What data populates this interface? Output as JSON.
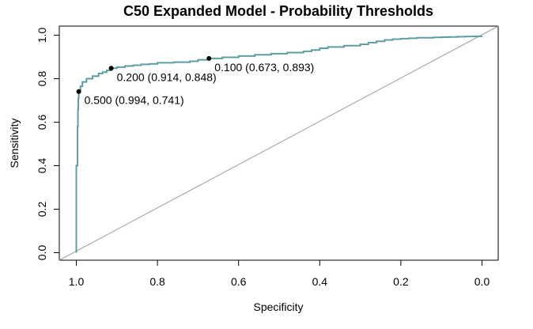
{
  "chart_data": {
    "type": "line",
    "title": "C50 Expanded Model - Probability Thresholds",
    "xlabel": "Specificity",
    "ylabel": "Sensitivity",
    "xlim": [
      1.0,
      0.0
    ],
    "ylim": [
      0.0,
      1.0
    ],
    "x_ticks": [
      1.0,
      0.8,
      0.6,
      0.4,
      0.2,
      0.0
    ],
    "x_tick_labels": [
      "1.0",
      "0.8",
      "0.6",
      "0.4",
      "0.2",
      "0.0"
    ],
    "y_ticks": [
      0.0,
      0.2,
      0.4,
      0.6,
      0.8,
      1.0
    ],
    "y_tick_labels": [
      "0.0",
      "0.2",
      "0.4",
      "0.6",
      "0.8",
      "1.0"
    ],
    "grid": false,
    "colors": {
      "roc_curve": "#5f9ea0",
      "diagonal": "#9e9e9e",
      "points": "#000000",
      "frame": "#000000"
    },
    "series": [
      {
        "x": [
          1.0,
          1.0,
          0.997,
          0.996,
          0.995,
          0.994,
          0.99,
          0.985,
          0.975,
          0.96,
          0.945,
          0.935,
          0.925,
          0.914,
          0.9,
          0.88,
          0.86,
          0.84,
          0.82,
          0.8,
          0.76,
          0.72,
          0.7,
          0.673,
          0.64,
          0.6,
          0.56,
          0.52,
          0.48,
          0.44,
          0.42,
          0.4,
          0.38,
          0.34,
          0.3,
          0.28,
          0.26,
          0.24,
          0.22,
          0.2,
          0.18,
          0.16,
          0.14,
          0.12,
          0.1,
          0.08,
          0.06,
          0.04,
          0.02,
          0.0
        ],
        "y": [
          0.0,
          0.4,
          0.58,
          0.66,
          0.71,
          0.741,
          0.765,
          0.785,
          0.8,
          0.812,
          0.824,
          0.83,
          0.838,
          0.848,
          0.853,
          0.858,
          0.862,
          0.866,
          0.868,
          0.873,
          0.876,
          0.88,
          0.887,
          0.893,
          0.898,
          0.904,
          0.91,
          0.915,
          0.92,
          0.926,
          0.932,
          0.94,
          0.946,
          0.952,
          0.958,
          0.966,
          0.972,
          0.978,
          0.982,
          0.984,
          0.986,
          0.988,
          0.988,
          0.99,
          0.991,
          0.992,
          0.993,
          0.994,
          0.995,
          0.996
        ]
      }
    ],
    "annotations": [
      {
        "threshold": 0.5,
        "specificity": 0.994,
        "sensitivity": 0.741,
        "label": "0.500 (0.994, 0.741)"
      },
      {
        "threshold": 0.2,
        "specificity": 0.914,
        "sensitivity": 0.848,
        "label": "0.200 (0.914, 0.848)"
      },
      {
        "threshold": 0.1,
        "specificity": 0.673,
        "sensitivity": 0.893,
        "label": "0.100 (0.673, 0.893)"
      }
    ]
  }
}
